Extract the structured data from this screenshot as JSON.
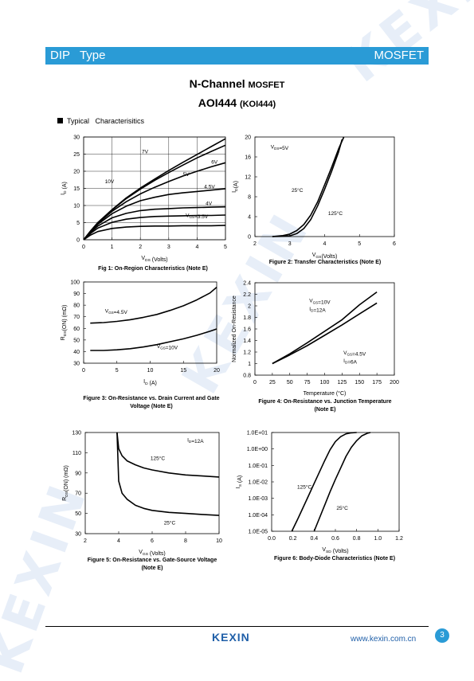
{
  "header": {
    "left": "DIP   Type",
    "right": "MOSFET"
  },
  "title": "N-Channel",
  "title_suffix": "MOSFET",
  "part": "AOI444",
  "part_alt": "(KOI444)",
  "section": "Typical   Characterisitics",
  "footer": {
    "logo": "KEXIN",
    "url": "www.kexin.com.cn",
    "page": "3"
  },
  "chart_data": [
    {
      "type": "line",
      "caption": "Fig 1: On-Region Characteristics (Note E)",
      "xlabel": "V_DS (Volts)",
      "ylabel": "I_D (A)",
      "xlim": [
        0,
        5
      ],
      "ylim": [
        0,
        30
      ],
      "xticks": [
        "0",
        "1",
        "2",
        "3",
        "4",
        "5"
      ],
      "yticks": [
        "0",
        "5",
        "10",
        "15",
        "20",
        "25",
        "30"
      ],
      "grid": true,
      "series": [
        {
          "name": "10V",
          "x": [
            0,
            0.25,
            0.5,
            1,
            1.5,
            2,
            2.5,
            3,
            3.5,
            4,
            4.5,
            5
          ],
          "y": [
            0,
            2.6,
            5,
            8.8,
            12.2,
            15.1,
            17.7,
            20.2,
            22.6,
            24.9,
            27.2,
            29.5
          ]
        },
        {
          "name": "7V",
          "x": [
            0,
            0.25,
            0.5,
            1,
            1.5,
            2,
            2.5,
            3,
            3.5,
            4,
            4.5,
            5
          ],
          "y": [
            0,
            2.6,
            5,
            8.7,
            12,
            14.8,
            17.3,
            19.6,
            21.8,
            23.9,
            25.8,
            27.6
          ]
        },
        {
          "name": "6V",
          "x": [
            0,
            0.25,
            0.5,
            1,
            1.5,
            2,
            2.5,
            3,
            3.5,
            4,
            4.5,
            5
          ],
          "y": [
            0,
            2.5,
            4.8,
            8.3,
            11.1,
            13.4,
            15.3,
            17,
            18.6,
            20,
            21.3,
            22.5
          ]
        },
        {
          "name": "5V",
          "x": [
            0,
            0.25,
            0.5,
            1,
            1.5,
            2,
            2.5,
            3,
            3.5,
            4,
            4.5,
            5
          ],
          "y": [
            0,
            2.4,
            4.5,
            7.6,
            9.8,
            11.4,
            12.4,
            13.2,
            13.7,
            14.1,
            14.5,
            14.9
          ]
        },
        {
          "name": "4.5V",
          "x": [
            0,
            0.25,
            0.5,
            1,
            1.5,
            2,
            2.5,
            3,
            3.5,
            4,
            4.5,
            5
          ],
          "y": [
            0,
            2.2,
            4,
            6.4,
            7.7,
            8.5,
            8.9,
            9.1,
            9.3,
            9.4,
            9.5,
            9.6
          ]
        },
        {
          "name": "4V",
          "x": [
            0,
            0.25,
            0.5,
            1,
            1.5,
            2,
            2.5,
            3,
            3.5,
            4,
            4.5,
            5
          ],
          "y": [
            0,
            1.9,
            3.4,
            5.1,
            6,
            6.5,
            6.8,
            6.9,
            7,
            7.1,
            7.1,
            7.2
          ]
        },
        {
          "name": "V_GS=3.5V",
          "x": [
            0,
            0.25,
            0.5,
            1,
            1.5,
            2,
            2.5,
            3,
            3.5,
            4,
            4.5,
            5
          ],
          "y": [
            0,
            1.4,
            2.4,
            3.3,
            3.7,
            3.9,
            4,
            4,
            4.1,
            4.1,
            4.1,
            4.2
          ]
        }
      ],
      "labels": [
        {
          "text": "7V",
          "x": 2.05,
          "y": 25.2
        },
        {
          "text": "6V",
          "x": 4.5,
          "y": 22.2
        },
        {
          "text": "5V",
          "x": 3.5,
          "y": 18.6
        },
        {
          "text": "4.5V",
          "x": 4.25,
          "y": 15
        },
        {
          "text": "4V",
          "x": 4.3,
          "y": 10.1
        },
        {
          "text": "10V",
          "x": 0.75,
          "y": 16.5
        },
        {
          "text": "V_GS=3.5V",
          "x": 3.6,
          "y": 6.6
        }
      ]
    },
    {
      "type": "line",
      "caption": "Figure 2: Transfer Characteristics (Note E)",
      "xlabel": "V_GS(Volts)",
      "ylabel": "I_D(A)",
      "xlim": [
        2,
        6
      ],
      "ylim": [
        0,
        20
      ],
      "xticks": [
        "2",
        "3",
        "4",
        "5",
        "6"
      ],
      "yticks": [
        "0",
        "4",
        "8",
        "12",
        "16",
        "20"
      ],
      "grid": false,
      "series": [
        {
          "name": "25°C",
          "x": [
            2.5,
            2.8,
            3,
            3.2,
            3.4,
            3.6,
            3.8,
            4,
            4.2,
            4.4,
            4.5
          ],
          "y": [
            0,
            0.05,
            0.15,
            0.6,
            1.6,
            3.4,
            6.2,
            9.5,
            13.1,
            17,
            19.5
          ]
        },
        {
          "name": "125°C",
          "x": [
            2.5,
            2.8,
            3,
            3.2,
            3.4,
            3.6,
            3.8,
            4,
            4.2,
            4.4,
            4.55
          ],
          "y": [
            0,
            0.2,
            0.5,
            1.2,
            2.4,
            4.3,
            7,
            10.4,
            13.9,
            17.6,
            20
          ]
        }
      ],
      "labels": [
        {
          "text": "V_DS=5V",
          "x": 2.45,
          "y": 17.7
        },
        {
          "text": "25°C",
          "x": 3.05,
          "y": 9
        },
        {
          "text": "125°C",
          "x": 4.1,
          "y": 4.3
        }
      ]
    },
    {
      "type": "line",
      "caption": "Figure 3: On-Resistance vs. Drain Current and Gate Voltage (Note E)",
      "xlabel": "I_D (A)",
      "ylabel": "R_DS(ON) (mΩ)",
      "xlim": [
        0,
        20
      ],
      "ylim": [
        30,
        100
      ],
      "xticks": [
        "0",
        "5",
        "10",
        "15",
        "20"
      ],
      "yticks": [
        "30",
        "40",
        "50",
        "60",
        "70",
        "80",
        "90",
        "100"
      ],
      "grid": false,
      "series": [
        {
          "name": "V_GS=4.5V",
          "x": [
            1,
            3,
            5,
            7,
            9,
            11,
            13,
            15,
            17,
            19,
            20
          ],
          "y": [
            64.5,
            65,
            66,
            67.5,
            69.5,
            72,
            75.5,
            79.5,
            84.5,
            90.5,
            95.5
          ]
        },
        {
          "name": "V_GS=10V",
          "x": [
            1,
            3,
            5,
            7,
            9,
            11,
            13,
            15,
            17,
            19,
            20
          ],
          "y": [
            41,
            41,
            41.5,
            42.5,
            44,
            46,
            48.5,
            51,
            54,
            57.5,
            59.5
          ]
        }
      ],
      "labels": [
        {
          "text": "V_GS=4.5V",
          "x": 3.2,
          "y": 73.5
        },
        {
          "text": "V_GS=10V",
          "x": 11,
          "y": 43
        }
      ]
    },
    {
      "type": "line",
      "caption": "Figure 4: On-Resistance vs. Junction Temperature (Note E)",
      "xlabel": "Temperature (°C)",
      "ylabel": "Normalized On-Resistance",
      "xlim": [
        0,
        200
      ],
      "ylim": [
        0.8,
        2.4
      ],
      "xticks": [
        "0",
        "25",
        "50",
        "75",
        "100",
        "125",
        "150",
        "175",
        "200"
      ],
      "yticks": [
        "0.8",
        "1",
        "1.2",
        "1.4",
        "1.6",
        "1.8",
        "2",
        "2.2",
        "2.4"
      ],
      "grid": false,
      "series": [
        {
          "name": "V_GS=10V, I_D=12A",
          "x": [
            25,
            50,
            75,
            100,
            125,
            150,
            175
          ],
          "y": [
            1,
            1.17,
            1.36,
            1.56,
            1.76,
            2.02,
            2.24
          ]
        },
        {
          "name": "V_GS=4.5V, I_D=6A",
          "x": [
            25,
            50,
            75,
            100,
            125,
            150,
            175
          ],
          "y": [
            1,
            1.15,
            1.31,
            1.49,
            1.67,
            1.86,
            2.05
          ]
        }
      ],
      "labels": [
        {
          "text": "V_GS=10V",
          "x": 78,
          "y": 2.06
        },
        {
          "text": "I_D=12A",
          "x": 78,
          "y": 1.92
        },
        {
          "text": "V_GS=4.5V",
          "x": 127,
          "y": 1.16
        },
        {
          "text": "I_D=6A",
          "x": 127,
          "y": 1.02
        }
      ]
    },
    {
      "type": "line",
      "caption": "Figure 5: On-Resistance vs. Gate-Source Voltage (Note E)",
      "xlabel": "V_GS (Volts)",
      "ylabel": "R_DS(ON) (mΩ)",
      "xlim": [
        2,
        10
      ],
      "ylim": [
        30,
        130
      ],
      "xticks": [
        "2",
        "4",
        "6",
        "8",
        "10"
      ],
      "yticks": [
        "30",
        "50",
        "70",
        "90",
        "110",
        "130"
      ],
      "grid": false,
      "series": [
        {
          "name": "125°C",
          "x": [
            3.9,
            4,
            4.2,
            4.5,
            5,
            5.5,
            6,
            7,
            8,
            9,
            10
          ],
          "y": [
            130,
            114,
            107,
            102,
            98,
            95,
            93,
            90,
            88,
            87,
            86
          ]
        },
        {
          "name": "25°C",
          "x": [
            3.9,
            4,
            4.2,
            4.5,
            5,
            5.5,
            6,
            7,
            8,
            9,
            10
          ],
          "y": [
            130,
            82,
            70,
            64,
            58,
            55,
            53,
            51,
            50,
            49,
            48
          ]
        }
      ],
      "labels": [
        {
          "text": "I_D=12A",
          "x": 8.1,
          "y": 121
        },
        {
          "text": "125°C",
          "x": 5.9,
          "y": 103
        },
        {
          "text": "25°C",
          "x": 6.7,
          "y": 39
        }
      ]
    },
    {
      "type": "line",
      "caption": "Figure 6: Body-Diode Characteristics (Note E)",
      "xlabel": "V_SD (Volts)",
      "ylabel": "I_S (A)",
      "xlim": [
        0,
        1.2
      ],
      "ylim_log10": [
        -5,
        1
      ],
      "log_y": true,
      "xticks": [
        "0.0",
        "0.2",
        "0.4",
        "0.6",
        "0.8",
        "1.0",
        "1.2"
      ],
      "yticks": [
        "1.0E-05",
        "1.0E-04",
        "1.0E-03",
        "1.0E-02",
        "1.0E-01",
        "1.0E+00",
        "1.0E+01"
      ],
      "grid": false,
      "series": [
        {
          "name": "125°C",
          "x": [
            0.19,
            0.25,
            0.3,
            0.35,
            0.4,
            0.45,
            0.5,
            0.55,
            0.6,
            0.65,
            0.7,
            0.75,
            0.8
          ],
          "y_log10": [
            -5,
            -4.2,
            -3.5,
            -2.8,
            -2.1,
            -1.4,
            -0.7,
            -0.05,
            0.45,
            0.75,
            0.92,
            0.98,
            1
          ]
        },
        {
          "name": "25°C",
          "x": [
            0.4,
            0.45,
            0.5,
            0.55,
            0.6,
            0.65,
            0.7,
            0.75,
            0.8,
            0.85,
            0.9,
            0.93
          ],
          "y_log10": [
            -5,
            -4.2,
            -3.4,
            -2.6,
            -1.85,
            -1.15,
            -0.45,
            0.1,
            0.5,
            0.8,
            0.95,
            1
          ]
        }
      ],
      "labels": [
        {
          "text": "125°C",
          "x": 0.24,
          "y_log10": -2.4
        },
        {
          "text": "25°C",
          "x": 0.61,
          "y_log10": -3.7
        }
      ]
    }
  ]
}
